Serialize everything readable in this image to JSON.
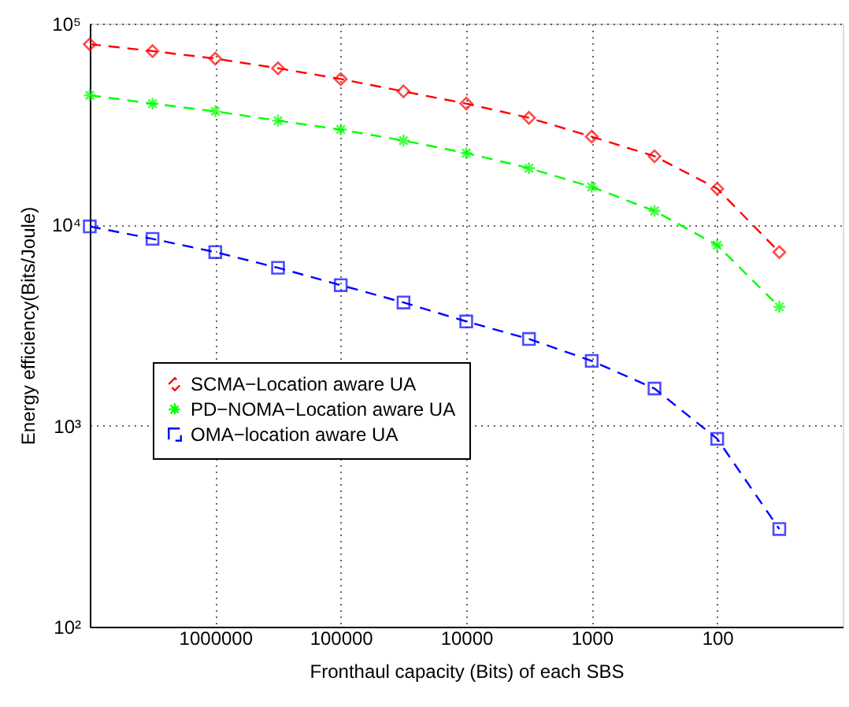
{
  "chart_data": {
    "type": "line",
    "xlabel": "Fronthaul capacity (Bits) of each SBS",
    "ylabel": "Energy efficiency(Bits/Joule)",
    "x": [
      10000000,
      3162278,
      1000000,
      316228,
      100000,
      31623,
      10000,
      3162,
      1000,
      316,
      100,
      32
    ],
    "series": [
      {
        "name": "SCMA−Location aware UA",
        "color": "#ff0000",
        "marker": "diamond",
        "values": [
          79000,
          73000,
          67000,
          60000,
          53000,
          46000,
          40000,
          34000,
          27400,
          21900,
          15100,
          7300
        ]
      },
      {
        "name": "PD−NOMA−Location aware UA",
        "color": "#00ff00",
        "marker": "cross",
        "values": [
          44000,
          40000,
          36600,
          32900,
          29700,
          26200,
          22700,
          19100,
          15400,
          11700,
          7900,
          3900
        ]
      },
      {
        "name": "OMA−location aware UA",
        "color": "#0000ff",
        "marker": "square",
        "values": [
          9800,
          8500,
          7300,
          6100,
          5000,
          4100,
          3300,
          2700,
          2100,
          1530,
          860,
          306
        ]
      }
    ],
    "log": "xy",
    "xlim": [
      10000000,
      10
    ],
    "xticks": [
      1000000,
      100000,
      10000,
      1000,
      100
    ],
    "ylim": [
      100,
      100000
    ],
    "yticks": [
      {
        "value": 100,
        "label": "10²"
      },
      {
        "value": 1000,
        "label": "10³"
      },
      {
        "value": 10000,
        "label": "10⁴"
      },
      {
        "value": 100000,
        "label": "10⁵"
      }
    ],
    "grid": true,
    "legend": "bottom left",
    "line_style": "dashed"
  }
}
